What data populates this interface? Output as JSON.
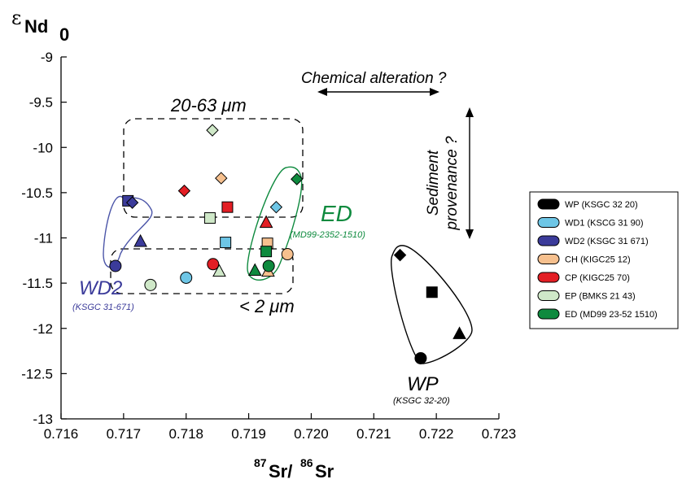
{
  "chart_data": {
    "type": "scatter",
    "xlabel_prefix": "87",
    "xlabel_main": "Sr/",
    "xlabel_prefix2": "86",
    "xlabel_main2": "Sr",
    "ylabel_eps": "ε",
    "ylabel_main": "Nd",
    "ylabel_sub": "0",
    "xlim": [
      0.716,
      0.723
    ],
    "ylim": [
      -13,
      -9
    ],
    "x_ticks": [
      0.716,
      0.717,
      0.718,
      0.719,
      0.72,
      0.721,
      0.722,
      0.723
    ],
    "x_tick_labels": [
      "0.716",
      "0.717",
      "0.718",
      "0.719",
      "0.720",
      "0.721",
      "0.722",
      "0.723"
    ],
    "y_ticks": [
      -9,
      -9.5,
      -10,
      -10.5,
      -11,
      -11.5,
      -12,
      -12.5,
      -13
    ],
    "y_tick_labels": [
      "-9",
      "-9.5",
      "-10",
      "-10.5",
      "-11",
      "-11.5",
      "-12",
      "-12.5",
      "-13"
    ],
    "legend_position": "right",
    "legend": [
      {
        "label": "WP (KSGC 32 20)",
        "color": "#000000"
      },
      {
        "label": "WD1 (KSCG 31 90)",
        "color": "#6ec6e6"
      },
      {
        "label": "WD2 (KSGC 31 671)",
        "color": "#3b3b9a"
      },
      {
        "label": "CH (KIGC25 12)",
        "color": "#f6c08e"
      },
      {
        "label": "CP (KIGC25 70)",
        "color": "#e31e24"
      },
      {
        "label": "EP (BMKS 21 43)",
        "color": "#cfe8c8"
      },
      {
        "label": "ED (MD99 23-52 1510)",
        "color": "#0e8a3e"
      }
    ],
    "series": [
      {
        "name": "WP",
        "color": "#000000",
        "points": [
          {
            "x": 0.72142,
            "y": -11.19,
            "shape": "diamond"
          },
          {
            "x": 0.72193,
            "y": -11.6,
            "shape": "square"
          },
          {
            "x": 0.72237,
            "y": -12.06,
            "shape": "triangle"
          },
          {
            "x": 0.72175,
            "y": -12.33,
            "shape": "circle"
          }
        ]
      },
      {
        "name": "WD1",
        "color": "#6ec6e6",
        "points": [
          {
            "x": 0.71944,
            "y": -10.66,
            "shape": "diamond"
          },
          {
            "x": 0.71863,
            "y": -11.05,
            "shape": "square"
          },
          {
            "x": 0.718,
            "y": -11.44,
            "shape": "circle"
          }
        ]
      },
      {
        "name": "WD2",
        "color": "#3b3b9a",
        "points": [
          {
            "x": 0.71707,
            "y": -10.59,
            "shape": "square"
          },
          {
            "x": 0.71714,
            "y": -10.61,
            "shape": "diamond"
          },
          {
            "x": 0.71727,
            "y": -11.04,
            "shape": "triangle"
          },
          {
            "x": 0.71687,
            "y": -11.31,
            "shape": "circle"
          }
        ]
      },
      {
        "name": "CH",
        "color": "#f6c08e",
        "points": [
          {
            "x": 0.71856,
            "y": -10.34,
            "shape": "diamond"
          },
          {
            "x": 0.7193,
            "y": -11.06,
            "shape": "square"
          },
          {
            "x": 0.71931,
            "y": -11.37,
            "shape": "triangle"
          },
          {
            "x": 0.71962,
            "y": -11.18,
            "shape": "circle"
          }
        ]
      },
      {
        "name": "CP",
        "color": "#e31e24",
        "points": [
          {
            "x": 0.71797,
            "y": -10.48,
            "shape": "diamond"
          },
          {
            "x": 0.71866,
            "y": -10.66,
            "shape": "square"
          },
          {
            "x": 0.71928,
            "y": -10.83,
            "shape": "triangle"
          },
          {
            "x": 0.71843,
            "y": -11.29,
            "shape": "circle"
          }
        ]
      },
      {
        "name": "EP",
        "color": "#cfe8c8",
        "points": [
          {
            "x": 0.71842,
            "y": -9.81,
            "shape": "diamond"
          },
          {
            "x": 0.71838,
            "y": -10.78,
            "shape": "square"
          },
          {
            "x": 0.71853,
            "y": -11.37,
            "shape": "triangle"
          },
          {
            "x": 0.71743,
            "y": -11.52,
            "shape": "circle"
          }
        ]
      },
      {
        "name": "ED",
        "color": "#0e8a3e",
        "points": [
          {
            "x": 0.71977,
            "y": -10.35,
            "shape": "diamond"
          },
          {
            "x": 0.71928,
            "y": -11.15,
            "shape": "square"
          },
          {
            "x": 0.7191,
            "y": -11.36,
            "shape": "triangle"
          },
          {
            "x": 0.71932,
            "y": -11.31,
            "shape": "circle"
          }
        ]
      }
    ],
    "annotations": {
      "chem_alteration": "Chemical alteration ?",
      "sediment": "Sediment",
      "provenance": "provenance ?",
      "coarse_fraction": "20-63 μm",
      "fine_fraction": "< 2 μm",
      "ed_label": "ED",
      "ed_sub": "(MD99-2352-1510)",
      "wd2_label": "WD2",
      "wd2_sub": "(KSGC 31-671)",
      "wp_label": "WP",
      "wp_sub": "(KSGC 32-20)"
    }
  }
}
